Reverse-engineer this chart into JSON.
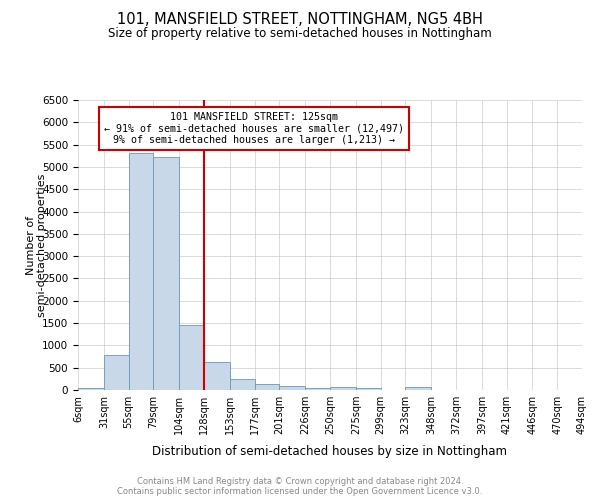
{
  "title": "101, MANSFIELD STREET, NOTTINGHAM, NG5 4BH",
  "subtitle": "Size of property relative to semi-detached houses in Nottingham",
  "xlabel": "Distribution of semi-detached houses by size in Nottingham",
  "ylabel": "Number of\nsemi-detached properties",
  "footer_line1": "Contains HM Land Registry data © Crown copyright and database right 2024.",
  "footer_line2": "Contains public sector information licensed under the Open Government Licence v3.0.",
  "property_line_x": 128,
  "annotation_title": "101 MANSFIELD STREET: 125sqm",
  "annotation_line2": "← 91% of semi-detached houses are smaller (12,497)",
  "annotation_line3": "9% of semi-detached houses are larger (1,213) →",
  "bar_color": "#c8d8e8",
  "bar_edge_color": "#6699bb",
  "line_color": "#cc0000",
  "annotation_box_color": "#cc0000",
  "ylim": [
    0,
    6500
  ],
  "bins": [
    6,
    31,
    55,
    79,
    104,
    128,
    153,
    177,
    201,
    226,
    250,
    275,
    299,
    323,
    348,
    372,
    397,
    421,
    446,
    470,
    494
  ],
  "bin_labels": [
    "6sqm",
    "31sqm",
    "55sqm",
    "79sqm",
    "104sqm",
    "128sqm",
    "153sqm",
    "177sqm",
    "201sqm",
    "226sqm",
    "250sqm",
    "275sqm",
    "299sqm",
    "323sqm",
    "348sqm",
    "372sqm",
    "397sqm",
    "421sqm",
    "446sqm",
    "470sqm",
    "494sqm"
  ],
  "values": [
    50,
    780,
    5320,
    5220,
    1450,
    630,
    240,
    130,
    90,
    55,
    65,
    50,
    0,
    60,
    0,
    0,
    0,
    0,
    0,
    0
  ]
}
